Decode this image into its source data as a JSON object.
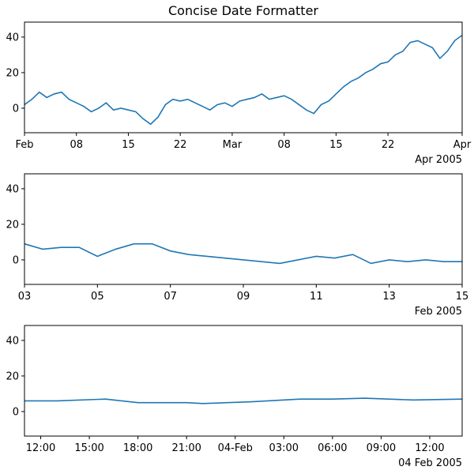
{
  "chart_data": [
    {
      "type": "line",
      "title": "Concise Date Formatter",
      "color": "#1f77b4",
      "x": [
        "2005-02-01",
        "2005-02-02",
        "2005-02-03",
        "2005-02-04",
        "2005-02-05",
        "2005-02-06",
        "2005-02-07",
        "2005-02-08",
        "2005-02-09",
        "2005-02-10",
        "2005-02-11",
        "2005-02-12",
        "2005-02-13",
        "2005-02-14",
        "2005-02-15",
        "2005-02-16",
        "2005-02-17",
        "2005-02-18",
        "2005-02-19",
        "2005-02-20",
        "2005-02-21",
        "2005-02-22",
        "2005-02-23",
        "2005-02-24",
        "2005-02-25",
        "2005-02-26",
        "2005-02-27",
        "2005-02-28",
        "2005-03-01",
        "2005-03-02",
        "2005-03-03",
        "2005-03-04",
        "2005-03-05",
        "2005-03-06",
        "2005-03-07",
        "2005-03-08",
        "2005-03-09",
        "2005-03-10",
        "2005-03-11",
        "2005-03-12",
        "2005-03-13",
        "2005-03-14",
        "2005-03-15",
        "2005-03-16",
        "2005-03-17",
        "2005-03-18",
        "2005-03-19",
        "2005-03-20",
        "2005-03-21",
        "2005-03-22",
        "2005-03-23",
        "2005-03-24",
        "2005-03-25",
        "2005-03-26",
        "2005-03-27",
        "2005-03-28",
        "2005-03-29",
        "2005-03-30",
        "2005-03-31",
        "2005-04-01"
      ],
      "values": [
        2,
        5,
        9,
        6,
        8,
        9,
        5,
        3,
        1,
        -2,
        0,
        3,
        -1,
        0,
        -1,
        -2,
        -6,
        -9,
        -5,
        2,
        5,
        4,
        5,
        3,
        1,
        -1,
        2,
        3,
        1,
        4,
        5,
        6,
        8,
        5,
        6,
        7,
        5,
        2,
        -1,
        -3,
        2,
        4,
        8,
        12,
        15,
        17,
        20,
        22,
        25,
        26,
        30,
        32,
        37,
        38,
        36,
        34,
        28,
        32,
        38,
        41
      ],
      "xlim": [
        "2005-02-01",
        "2005-04-01"
      ],
      "xticks": [
        {
          "value": "2005-02-01",
          "label": "Feb"
        },
        {
          "value": "2005-02-08",
          "label": "08"
        },
        {
          "value": "2005-02-15",
          "label": "15"
        },
        {
          "value": "2005-02-22",
          "label": "22"
        },
        {
          "value": "2005-03-01",
          "label": "Mar"
        },
        {
          "value": "2005-03-08",
          "label": "08"
        },
        {
          "value": "2005-03-15",
          "label": "15"
        },
        {
          "value": "2005-03-22",
          "label": "22"
        },
        {
          "value": "2005-04-01",
          "label": "Apr"
        }
      ],
      "offset": "Apr 2005",
      "ylim": [
        -13.8,
        48.4
      ],
      "yticks": [
        0,
        20,
        40
      ]
    },
    {
      "type": "line",
      "color": "#1f77b4",
      "x": [
        "2005-02-03T00:00",
        "2005-02-03T12:00",
        "2005-02-04T00:00",
        "2005-02-04T12:00",
        "2005-02-05T00:00",
        "2005-02-05T12:00",
        "2005-02-06T00:00",
        "2005-02-06T12:00",
        "2005-02-07T00:00",
        "2005-02-07T12:00",
        "2005-02-08T00:00",
        "2005-02-08T12:00",
        "2005-02-09T00:00",
        "2005-02-09T12:00",
        "2005-02-10T00:00",
        "2005-02-10T12:00",
        "2005-02-11T00:00",
        "2005-02-11T12:00",
        "2005-02-12T00:00",
        "2005-02-12T12:00",
        "2005-02-13T00:00",
        "2005-02-13T12:00",
        "2005-02-14T00:00",
        "2005-02-14T12:00",
        "2005-02-15T00:00"
      ],
      "values": [
        9,
        6,
        7,
        7,
        2,
        6,
        9,
        9,
        5,
        3,
        2,
        1,
        0,
        -1,
        -2,
        0,
        2,
        1,
        3,
        -2,
        0,
        -1,
        0,
        -1,
        -1
      ],
      "xlim": [
        "2005-02-03T00:00",
        "2005-02-15T00:00"
      ],
      "xticks": [
        {
          "value": "2005-02-03T00:00",
          "label": "03"
        },
        {
          "value": "2005-02-05T00:00",
          "label": "05"
        },
        {
          "value": "2005-02-07T00:00",
          "label": "07"
        },
        {
          "value": "2005-02-09T00:00",
          "label": "09"
        },
        {
          "value": "2005-02-11T00:00",
          "label": "11"
        },
        {
          "value": "2005-02-13T00:00",
          "label": "13"
        },
        {
          "value": "2005-02-15T00:00",
          "label": "15"
        }
      ],
      "offset": "Feb 2005",
      "ylim": [
        -13.8,
        48.4
      ],
      "yticks": [
        0,
        20,
        40
      ]
    },
    {
      "type": "line",
      "color": "#1f77b4",
      "x": [
        "2005-02-03T11:00",
        "2005-02-03T13:00",
        "2005-02-03T16:00",
        "2005-02-03T18:00",
        "2005-02-03T21:00",
        "2005-02-03T22:00",
        "2005-02-04T01:00",
        "2005-02-04T03:00",
        "2005-02-04T04:00",
        "2005-02-04T06:00",
        "2005-02-04T08:00",
        "2005-02-04T11:00",
        "2005-02-04T14:00"
      ],
      "values": [
        6,
        6,
        7,
        5,
        5,
        4.5,
        5.5,
        6.5,
        7,
        7,
        7.5,
        6.5,
        7
      ],
      "xlim": [
        "2005-02-03T11:00",
        "2005-02-04T14:00"
      ],
      "xticks": [
        {
          "value": "2005-02-03T12:00",
          "label": "12:00"
        },
        {
          "value": "2005-02-03T15:00",
          "label": "15:00"
        },
        {
          "value": "2005-02-03T18:00",
          "label": "18:00"
        },
        {
          "value": "2005-02-03T21:00",
          "label": "21:00"
        },
        {
          "value": "2005-02-04T00:00",
          "label": "04-Feb"
        },
        {
          "value": "2005-02-04T03:00",
          "label": "03:00"
        },
        {
          "value": "2005-02-04T06:00",
          "label": "06:00"
        },
        {
          "value": "2005-02-04T09:00",
          "label": "09:00"
        },
        {
          "value": "2005-02-04T12:00",
          "label": "12:00"
        }
      ],
      "offset": "04 Feb 2005",
      "ylim": [
        -13.8,
        48.4
      ],
      "yticks": [
        0,
        20,
        40
      ]
    }
  ]
}
